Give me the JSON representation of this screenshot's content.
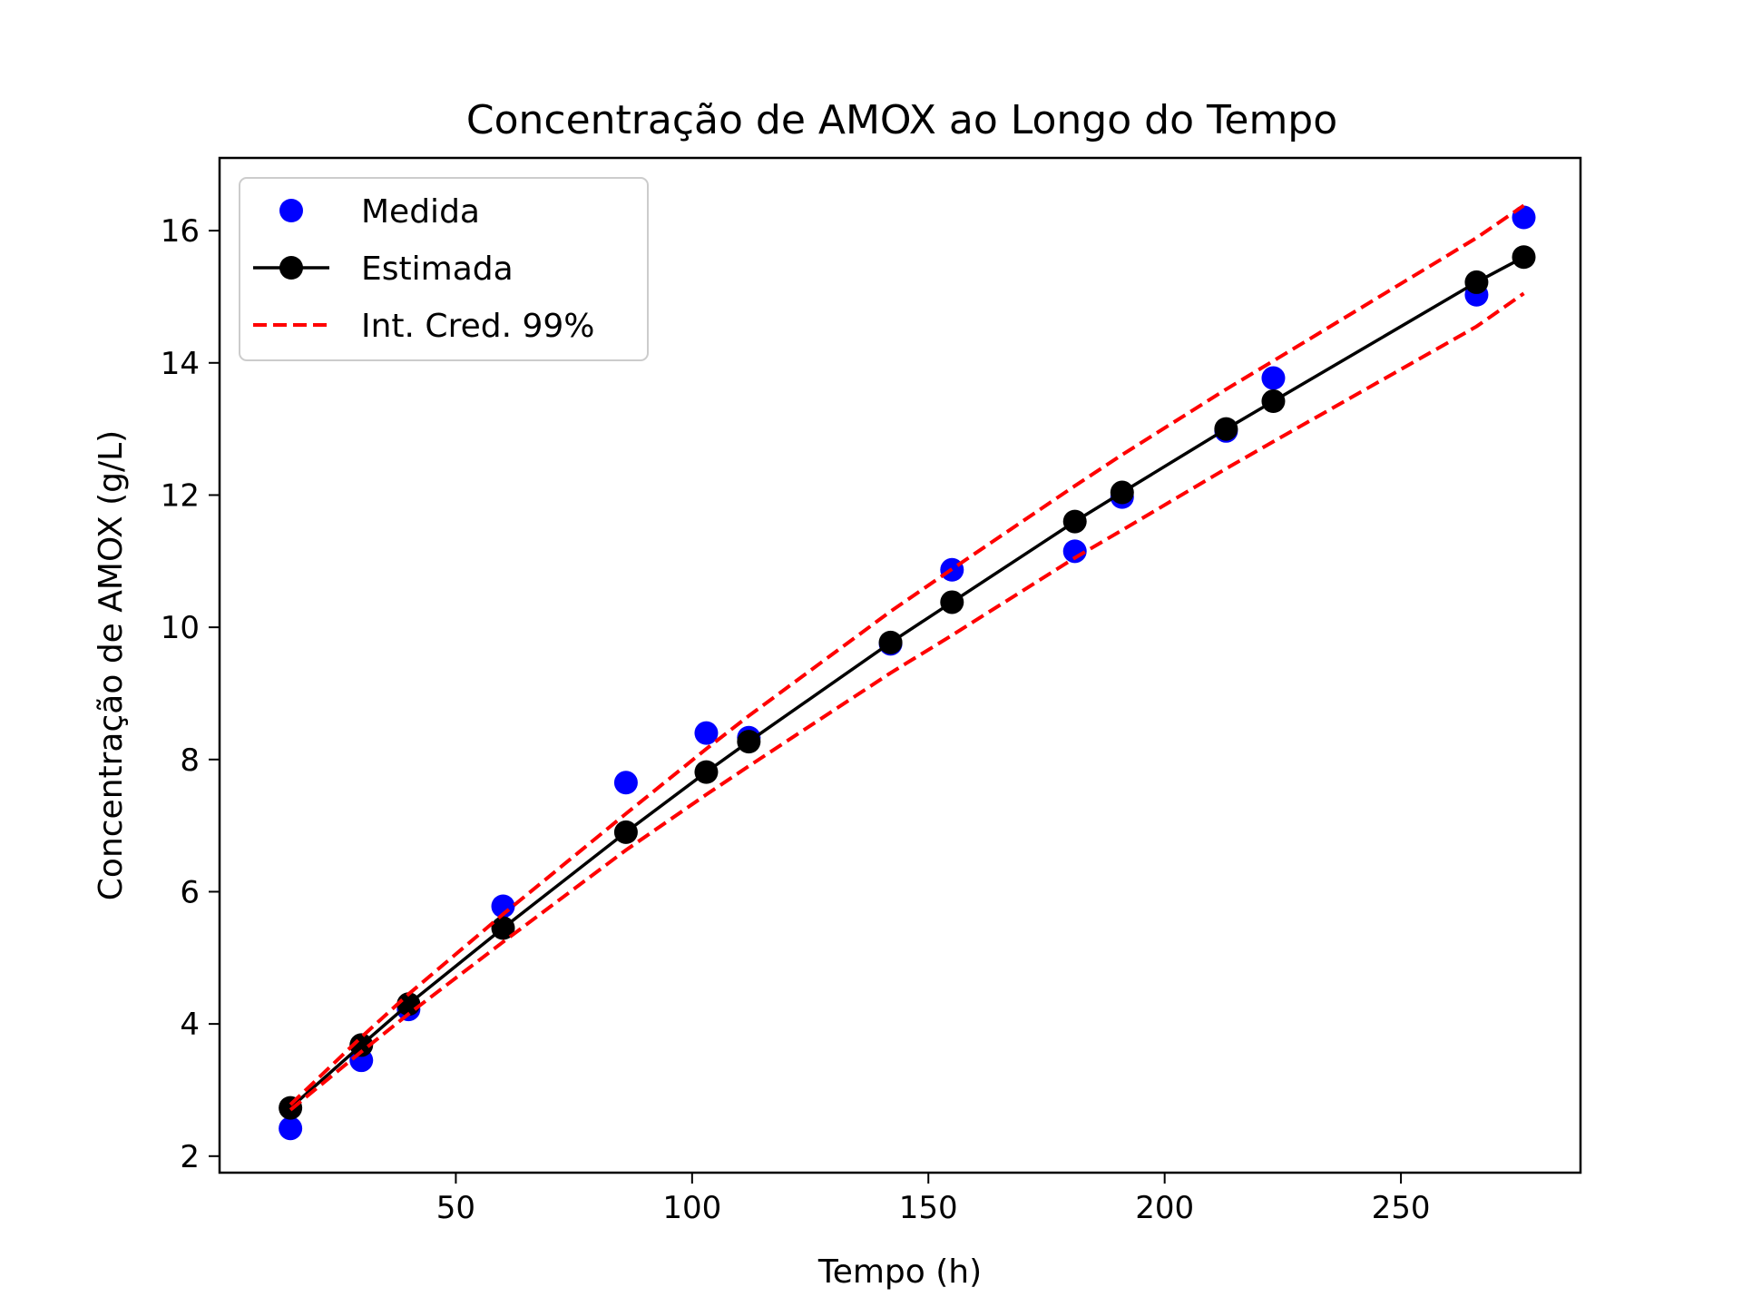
{
  "chart_data": {
    "type": "line",
    "title": "Concentração de AMOX ao Longo do Tempo",
    "xlabel": "Tempo (h)",
    "ylabel": "Concentração de AMOX (g/L)",
    "xlim": [
      0,
      288
    ],
    "ylim": [
      1.75,
      17.1
    ],
    "xticks": [
      50,
      100,
      150,
      200,
      250
    ],
    "yticks": [
      2,
      4,
      6,
      8,
      10,
      12,
      14,
      16
    ],
    "grid": false,
    "legend_position": "top-left",
    "colors": {
      "measured": "#0000ff",
      "estimated": "#000000",
      "interval": "#ff0000"
    },
    "series": [
      {
        "name": "Medida",
        "kind": "scatter",
        "x": [
          15,
          30,
          40,
          60,
          86,
          103,
          112,
          142,
          155,
          181,
          191,
          213,
          223,
          266,
          276
        ],
        "y": [
          2.42,
          3.45,
          4.22,
          5.78,
          7.65,
          8.4,
          8.33,
          9.75,
          10.87,
          11.15,
          11.97,
          12.97,
          13.77,
          15.03,
          16.2
        ]
      },
      {
        "name": "Estimada",
        "kind": "line-markers",
        "x": [
          15,
          30,
          40,
          60,
          86,
          103,
          112,
          142,
          155,
          181,
          191,
          213,
          223,
          266,
          276
        ],
        "y": [
          2.73,
          3.68,
          4.3,
          5.45,
          6.9,
          7.81,
          8.27,
          9.77,
          10.38,
          11.6,
          12.04,
          13.0,
          13.42,
          15.22,
          15.6
        ]
      },
      {
        "name": "Int. Cred. 99%",
        "kind": "dashed",
        "x": [
          15,
          30,
          40,
          60,
          86,
          103,
          112,
          142,
          155,
          181,
          191,
          213,
          223,
          266,
          276
        ],
        "y": [
          2.78,
          3.8,
          4.45,
          5.66,
          7.18,
          8.16,
          8.66,
          10.24,
          10.88,
          12.14,
          12.61,
          13.6,
          14.03,
          15.89,
          16.38
        ]
      },
      {
        "name": "Int. Cred. 99% (inferior)",
        "kind": "dashed",
        "x": [
          15,
          30,
          40,
          60,
          86,
          103,
          112,
          142,
          155,
          181,
          191,
          213,
          223,
          266,
          276
        ],
        "y": [
          2.7,
          3.58,
          4.15,
          5.24,
          6.63,
          7.47,
          7.9,
          9.31,
          9.88,
          11.05,
          11.47,
          12.4,
          12.81,
          14.55,
          15.05
        ]
      }
    ],
    "legend": [
      {
        "label": "Medida",
        "style": "marker",
        "color": "#0000ff"
      },
      {
        "label": "Estimada",
        "style": "line-marker",
        "color": "#000000"
      },
      {
        "label": "Int. Cred. 99%",
        "style": "dashed",
        "color": "#ff0000"
      }
    ]
  }
}
